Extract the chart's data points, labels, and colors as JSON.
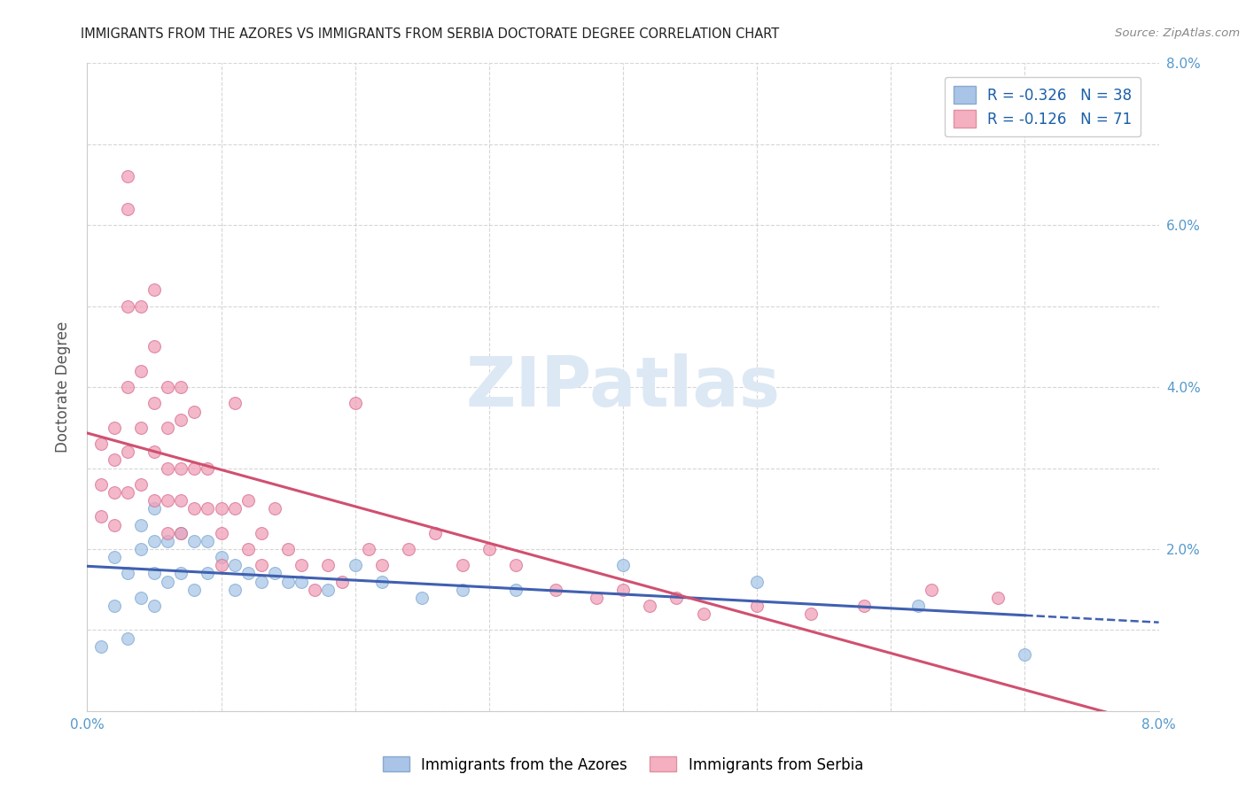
{
  "title": "IMMIGRANTS FROM THE AZORES VS IMMIGRANTS FROM SERBIA DOCTORATE DEGREE CORRELATION CHART",
  "source_text": "Source: ZipAtlas.com",
  "ylabel": "Doctorate Degree",
  "x_min": 0.0,
  "x_max": 0.08,
  "y_min": 0.0,
  "y_max": 0.08,
  "x_ticks": [
    0.0,
    0.01,
    0.02,
    0.03,
    0.04,
    0.05,
    0.06,
    0.07,
    0.08
  ],
  "y_ticks": [
    0.0,
    0.01,
    0.02,
    0.03,
    0.04,
    0.05,
    0.06,
    0.07,
    0.08
  ],
  "x_tick_labels": [
    "0.0%",
    "",
    "",
    "",
    "",
    "",
    "",
    "",
    "8.0%"
  ],
  "y_tick_labels_right": [
    "",
    "",
    "2.0%",
    "",
    "4.0%",
    "",
    "6.0%",
    "",
    "8.0%"
  ],
  "legend_entries": [
    {
      "label": "R = -0.326   N = 38",
      "facecolor": "#aac4e8",
      "edgecolor": "#88aacc"
    },
    {
      "label": "R = -0.126   N = 71",
      "facecolor": "#f4b0c0",
      "edgecolor": "#e090a0"
    }
  ],
  "series1_color": "#a8c8e8",
  "series2_color": "#f0a0b8",
  "series1_edge": "#80a8d0",
  "series2_edge": "#d87090",
  "line1_color": "#4060b0",
  "line2_color": "#d05070",
  "watermark_color": "#dde8f5",
  "background_color": "#ffffff",
  "grid_color": "#cccccc",
  "azores_x": [
    0.001,
    0.002,
    0.002,
    0.003,
    0.003,
    0.004,
    0.004,
    0.004,
    0.005,
    0.005,
    0.005,
    0.005,
    0.006,
    0.006,
    0.007,
    0.007,
    0.008,
    0.008,
    0.009,
    0.009,
    0.01,
    0.011,
    0.011,
    0.012,
    0.013,
    0.014,
    0.015,
    0.016,
    0.018,
    0.02,
    0.022,
    0.025,
    0.028,
    0.032,
    0.04,
    0.05,
    0.062,
    0.07
  ],
  "azores_y": [
    0.008,
    0.019,
    0.013,
    0.017,
    0.009,
    0.023,
    0.02,
    0.014,
    0.025,
    0.021,
    0.017,
    0.013,
    0.021,
    0.016,
    0.022,
    0.017,
    0.021,
    0.015,
    0.021,
    0.017,
    0.019,
    0.018,
    0.015,
    0.017,
    0.016,
    0.017,
    0.016,
    0.016,
    0.015,
    0.018,
    0.016,
    0.014,
    0.015,
    0.015,
    0.018,
    0.016,
    0.013,
    0.007
  ],
  "serbia_x": [
    0.001,
    0.001,
    0.001,
    0.002,
    0.002,
    0.002,
    0.002,
    0.003,
    0.003,
    0.003,
    0.003,
    0.003,
    0.003,
    0.004,
    0.004,
    0.004,
    0.004,
    0.005,
    0.005,
    0.005,
    0.005,
    0.005,
    0.006,
    0.006,
    0.006,
    0.006,
    0.006,
    0.007,
    0.007,
    0.007,
    0.007,
    0.007,
    0.008,
    0.008,
    0.008,
    0.009,
    0.009,
    0.01,
    0.01,
    0.01,
    0.011,
    0.011,
    0.012,
    0.012,
    0.013,
    0.013,
    0.014,
    0.015,
    0.016,
    0.017,
    0.018,
    0.019,
    0.02,
    0.021,
    0.022,
    0.024,
    0.026,
    0.028,
    0.03,
    0.032,
    0.035,
    0.038,
    0.04,
    0.042,
    0.044,
    0.046,
    0.05,
    0.054,
    0.058,
    0.063,
    0.068
  ],
  "serbia_y": [
    0.033,
    0.028,
    0.024,
    0.035,
    0.031,
    0.027,
    0.023,
    0.066,
    0.062,
    0.05,
    0.04,
    0.032,
    0.027,
    0.05,
    0.042,
    0.035,
    0.028,
    0.052,
    0.045,
    0.038,
    0.032,
    0.026,
    0.04,
    0.035,
    0.03,
    0.026,
    0.022,
    0.04,
    0.036,
    0.03,
    0.026,
    0.022,
    0.037,
    0.03,
    0.025,
    0.03,
    0.025,
    0.025,
    0.022,
    0.018,
    0.038,
    0.025,
    0.026,
    0.02,
    0.022,
    0.018,
    0.025,
    0.02,
    0.018,
    0.015,
    0.018,
    0.016,
    0.038,
    0.02,
    0.018,
    0.02,
    0.022,
    0.018,
    0.02,
    0.018,
    0.015,
    0.014,
    0.015,
    0.013,
    0.014,
    0.012,
    0.013,
    0.012,
    0.013,
    0.015,
    0.014
  ]
}
